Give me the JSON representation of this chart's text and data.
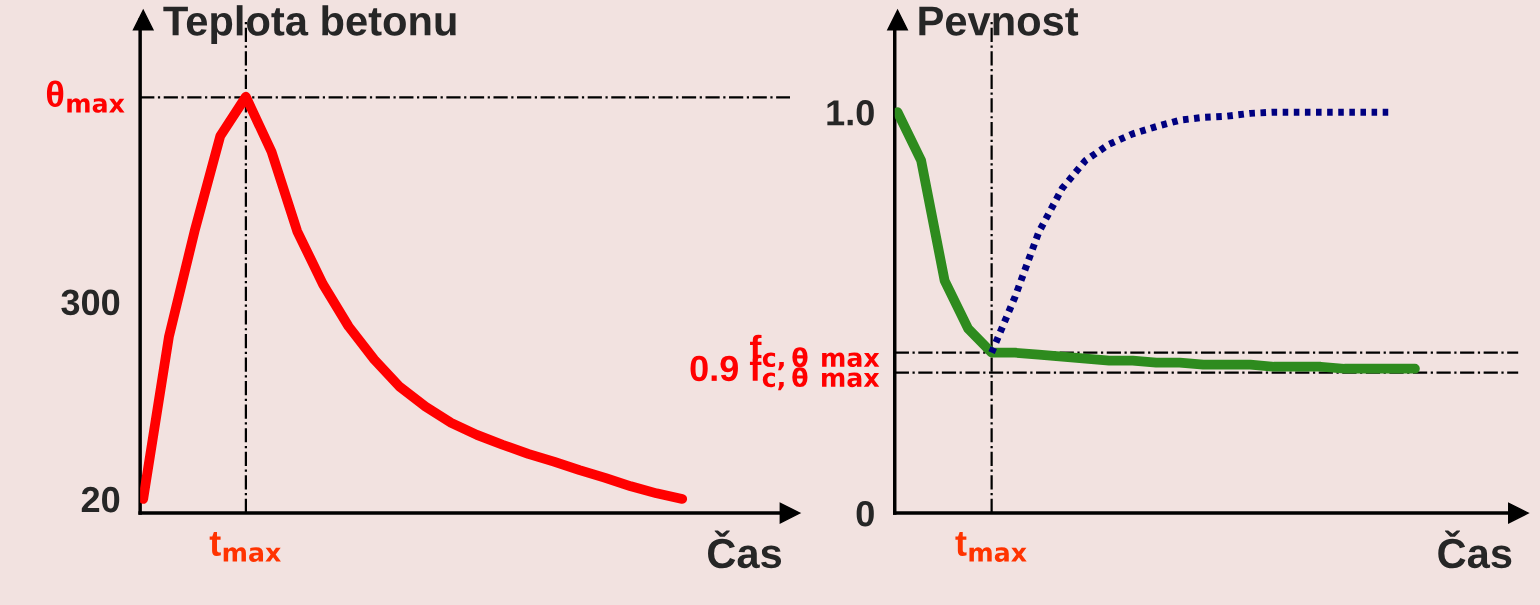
{
  "chart_data": [
    {
      "type": "line",
      "ylabel": "Teplota betonu",
      "xlabel": "Čas",
      "categories": [
        null,
        null,
        null,
        null,
        "t$_{max}$",
        null,
        null,
        null,
        null,
        null,
        null,
        null,
        null,
        null,
        null,
        null,
        null,
        null,
        null,
        null,
        null,
        null
      ],
      "ylim": [
        0,
        700
      ],
      "yticks": [
        20,
        300
      ],
      "series": [
        {
          "color": "#ff0000",
          "line_style": "solid",
          "values": [
            20,
            250,
            400,
            535,
            591,
            513,
            400,
            325,
            265,
            218,
            179,
            151,
            128,
            111,
            97,
            84,
            73,
            61,
            50,
            38,
            28,
            20
          ]
        }
      ],
      "ref_lines": [
        {
          "axis": "y",
          "value": 590,
          "label": "θ$_{max}$",
          "line_style": "dashdot",
          "color": "#000000"
        },
        {
          "axis": "x",
          "value": "t$_{max}$",
          "line_style": "dashdot",
          "color": "#000000"
        }
      ],
      "grid": false,
      "legend": false
    },
    {
      "type": "line",
      "ylabel": "Pevnost",
      "xlabel": "Čas",
      "categories": [
        null,
        null,
        null,
        null,
        "t$_{max}$",
        null,
        null,
        null,
        null,
        null,
        null,
        null,
        null,
        null,
        null,
        null,
        null,
        null,
        null,
        null,
        null,
        null,
        null
      ],
      "ylim": [
        0,
        1.23
      ],
      "yticks": [
        0,
        {
          "value": 1.0,
          "label": "1.0"
        }
      ],
      "series": [
        {
          "color": "#2e8b1e",
          "line_style": "solid",
          "values": [
            1.0,
            0.88,
            0.58,
            0.46,
            0.4,
            0.4,
            0.395,
            0.39,
            0.385,
            0.38,
            0.38,
            0.375,
            0.375,
            0.37,
            0.37,
            0.37,
            0.365,
            0.365,
            0.365,
            0.36,
            0.36,
            0.36,
            0.36
          ]
        },
        {
          "color": "#000080",
          "line_style": "dotted",
          "values": [
            null,
            null,
            null,
            null,
            0.4,
            0.54,
            0.7,
            0.81,
            0.88,
            0.92,
            0.946,
            0.964,
            0.98,
            0.987,
            0.99,
            0.997,
            1.0,
            1.0,
            1.0,
            1.0,
            1.0,
            1.0,
            null
          ]
        }
      ],
      "ref_lines": [
        {
          "axis": "y",
          "value": 0.4,
          "label": "f$_{c,θ}$ $_{max}$",
          "line_style": "dashdot",
          "color": "#000000"
        },
        {
          "axis": "y",
          "value": 0.35,
          "label": "0.9 f$_{c,θ}$ $_{max}$",
          "line_style": "dashdot",
          "color": "#000000"
        },
        {
          "axis": "x",
          "value": "t$_{max}$",
          "line_style": "dashdot",
          "color": "#000000"
        }
      ],
      "grid": false,
      "legend": false
    }
  ]
}
